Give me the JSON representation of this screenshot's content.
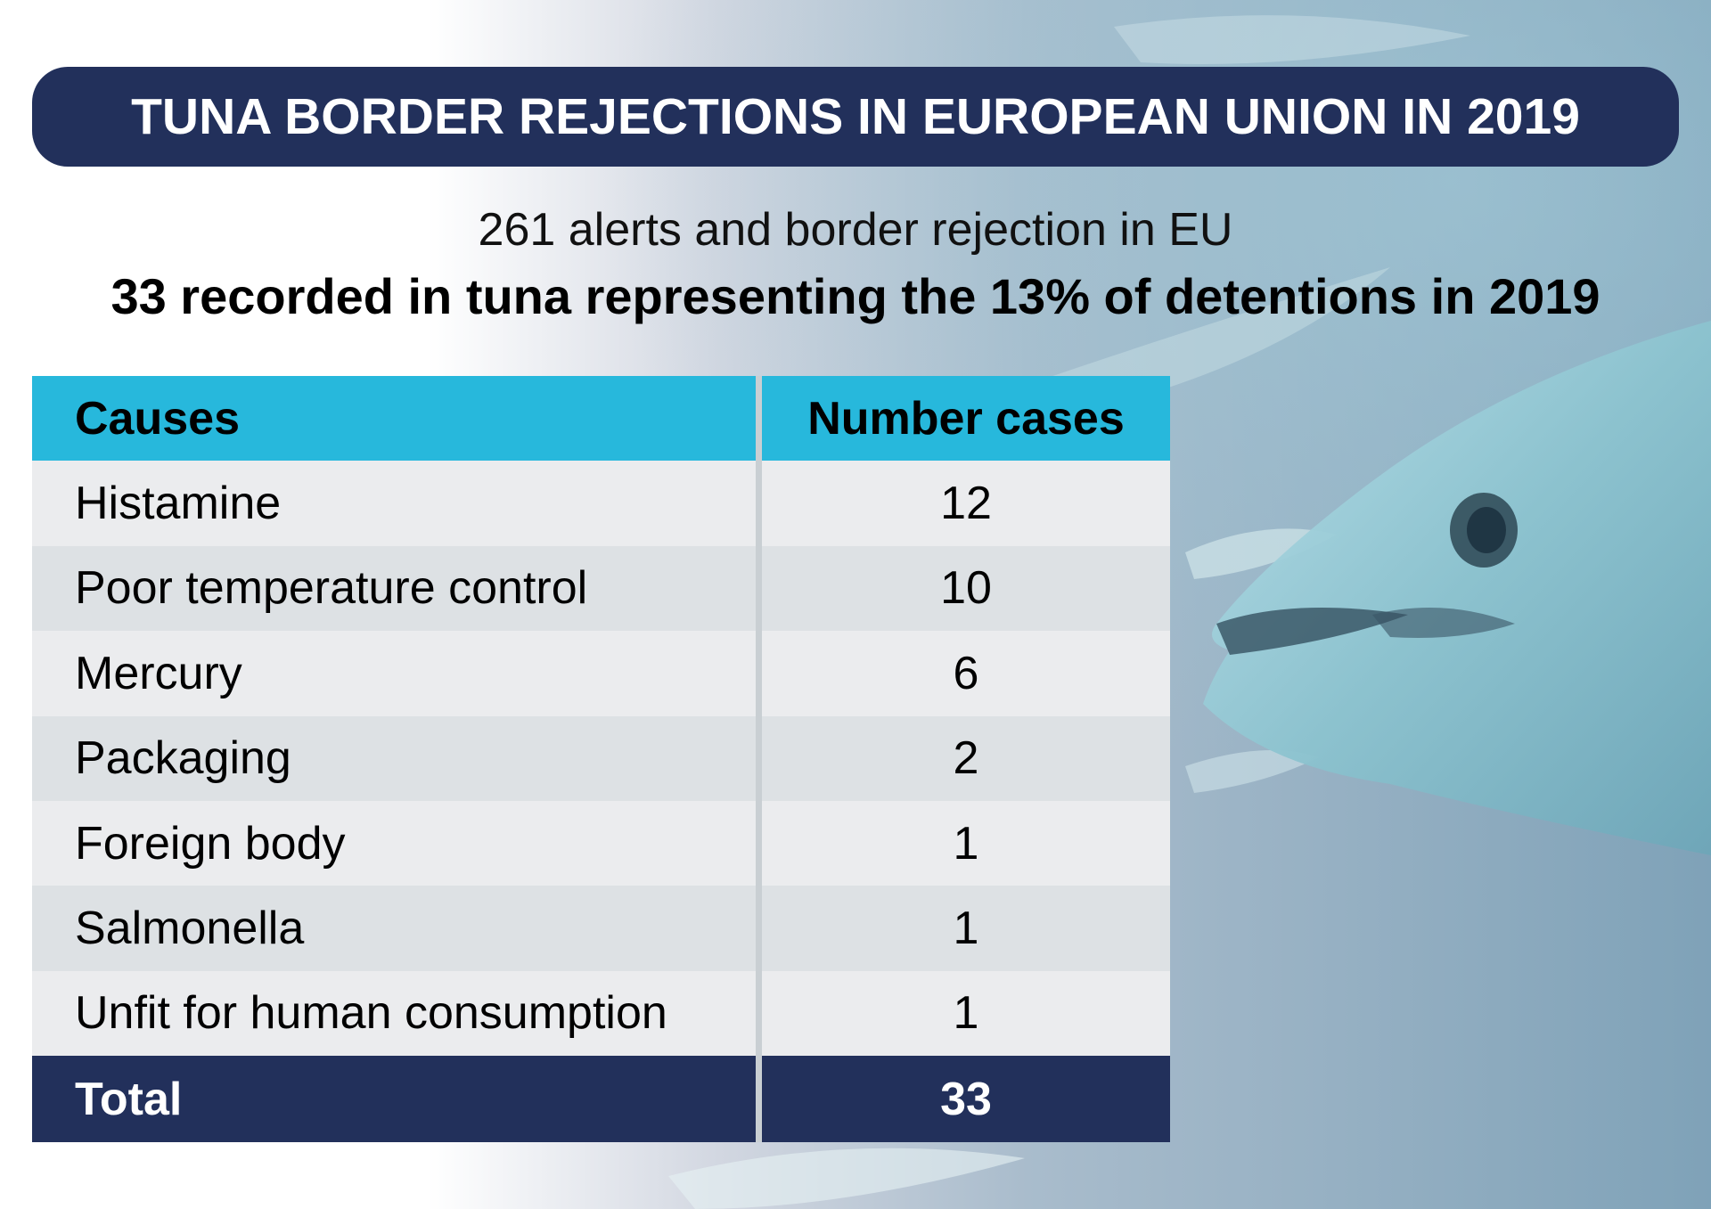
{
  "title": "TUNA BORDER REJECTIONS IN EUROPEAN UNION IN 2019",
  "subtitle_line1": "261 alerts and border rejection in EU",
  "subtitle_line2": "33 recorded in tuna representing the 13% of detentions in 2019",
  "colors": {
    "navy": "#22305b",
    "header_cyan": "#27b8dc",
    "row_light": "#ebecee",
    "row_dark": "#dde1e4"
  },
  "table": {
    "headers": {
      "cause": "Causes",
      "number": "Number cases"
    },
    "rows": [
      {
        "cause": "Histamine",
        "number": "12"
      },
      {
        "cause": "Poor temperature control",
        "number": "10"
      },
      {
        "cause": "Mercury",
        "number": "6"
      },
      {
        "cause": "Packaging",
        "number": "2"
      },
      {
        "cause": "Foreign body",
        "number": "1"
      },
      {
        "cause": "Salmonella",
        "number": "1"
      },
      {
        "cause": "Unfit for human consumption",
        "number": "1"
      }
    ],
    "total": {
      "label": "Total",
      "number": "33"
    }
  },
  "background": {
    "icon": "tuna-fish-photo"
  }
}
